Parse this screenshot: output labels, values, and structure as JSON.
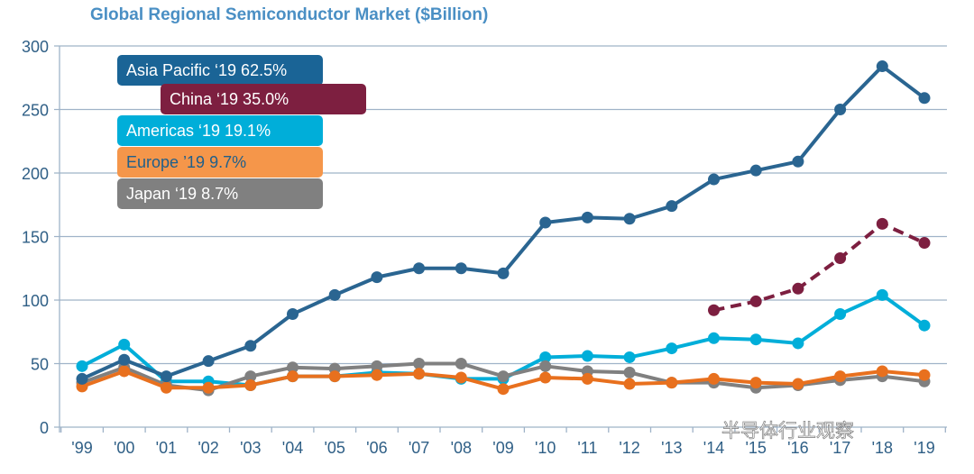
{
  "chart_data": {
    "type": "line",
    "title": "Global Regional Semiconductor Market ($Billion)",
    "xlabel": "",
    "ylabel": "",
    "ylim": [
      0,
      300
    ],
    "yticks": [
      0,
      50,
      100,
      150,
      200,
      250,
      300
    ],
    "grid": "horizontal",
    "categories": [
      "'99",
      "'00",
      "'01",
      "'02",
      "'03",
      "'04",
      "'05",
      "'06",
      "'07",
      "'08",
      "'09",
      "'10",
      "'11",
      "'12",
      "'13",
      "'14",
      "'15",
      "'16",
      "'17",
      "'18",
      "'19"
    ],
    "series": [
      {
        "name": "Americas",
        "label": "Americas ‘19  19.1%",
        "color": "#00aed9",
        "text_color": "#ffffff",
        "dashed": false,
        "values": [
          48,
          65,
          36,
          36,
          33,
          40,
          40,
          43,
          42,
          38,
          38,
          55,
          56,
          55,
          62,
          70,
          69,
          66,
          89,
          104,
          80
        ]
      },
      {
        "name": "Japan",
        "label": "Japan ‘19  8.7%",
        "color": "#808080",
        "text_color": "#ffffff",
        "dashed": false,
        "values": [
          35,
          47,
          33,
          29,
          40,
          47,
          46,
          48,
          50,
          50,
          40,
          48,
          44,
          43,
          35,
          35,
          31,
          33,
          37,
          40,
          36
        ]
      },
      {
        "name": "Europe",
        "label": "Europe ’19  9.7%",
        "color": "#e8701e",
        "box_color": "#f5964a",
        "text_color": "#1f5f8b",
        "dashed": false,
        "values": [
          32,
          44,
          31,
          31,
          33,
          40,
          40,
          41,
          42,
          39,
          30,
          39,
          38,
          34,
          35,
          38,
          35,
          34,
          40,
          44,
          41
        ]
      },
      {
        "name": "Asia Pacific",
        "label": "Asia Pacific ‘19  62.5%",
        "color": "#2a6591",
        "box_color": "#1a6496",
        "text_color": "#ffffff",
        "dashed": false,
        "values": [
          38,
          53,
          40,
          52,
          64,
          89,
          104,
          118,
          125,
          125,
          121,
          161,
          165,
          164,
          174,
          195,
          202,
          209,
          250,
          284,
          259
        ]
      },
      {
        "name": "China",
        "label": "China ‘19  35.0%",
        "color": "#7d1f40",
        "text_color": "#ffffff",
        "dashed": true,
        "values": [
          null,
          null,
          null,
          null,
          null,
          null,
          null,
          null,
          null,
          null,
          null,
          null,
          null,
          null,
          null,
          92,
          99,
          109,
          133,
          160,
          145
        ]
      }
    ],
    "legend_placement": "top-left"
  },
  "watermark": "半导体行业观察"
}
